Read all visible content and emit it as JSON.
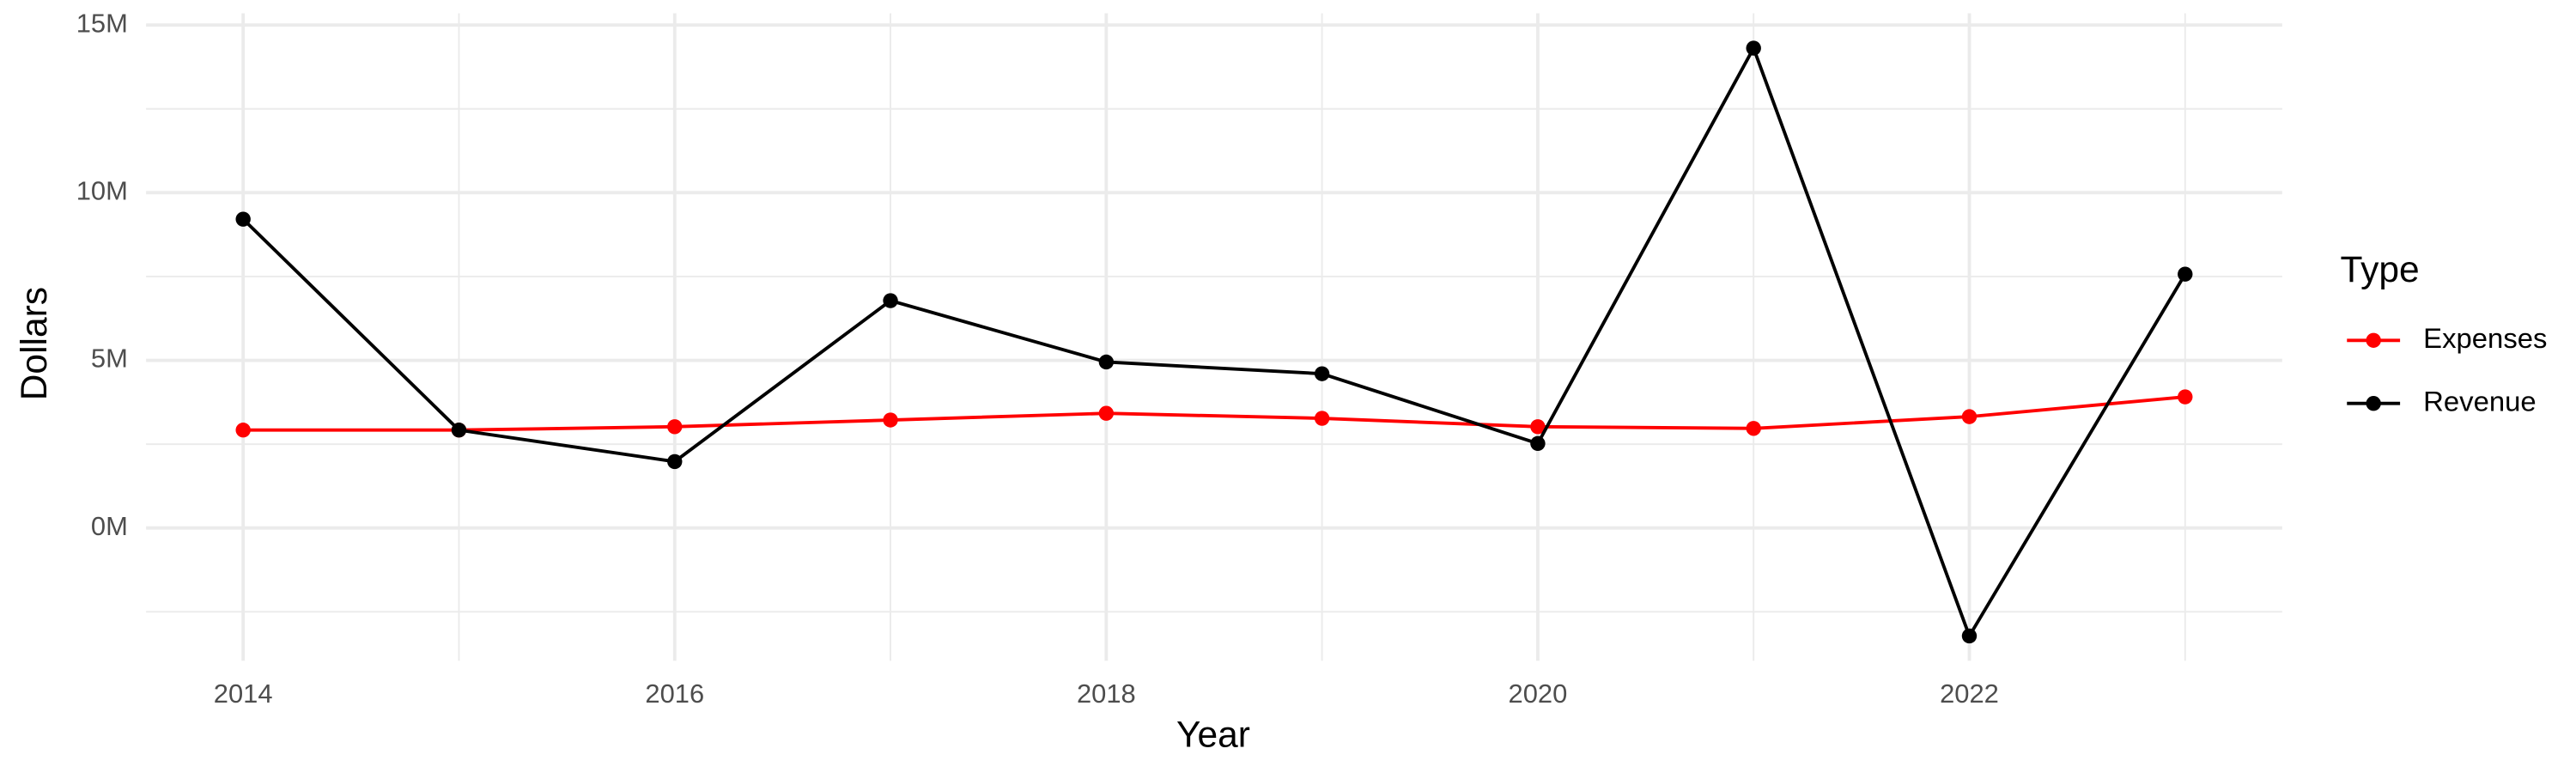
{
  "chart_data": {
    "type": "line",
    "x_label": "Year",
    "y_label": "Dollars",
    "legend_title": "Type",
    "legend_position": "right",
    "grid": true,
    "x": [
      2014,
      2015,
      2016,
      2017,
      2018,
      2019,
      2020,
      2021,
      2022,
      2023
    ],
    "series": [
      {
        "name": "Expenses",
        "color": "#ff0000",
        "values": [
          2920000,
          2920000,
          3020000,
          3220000,
          3420000,
          3270000,
          3020000,
          2970000,
          3320000,
          3910000
        ]
      },
      {
        "name": "Revenue",
        "color": "#000000",
        "values": [
          9210000,
          2920000,
          1980000,
          6780000,
          4950000,
          4600000,
          2520000,
          14310000,
          -3220000,
          7570000
        ]
      }
    ],
    "xlim": [
      2013.55,
      2023.45
    ],
    "xticks": [
      2014,
      2016,
      2018,
      2020,
      2022
    ],
    "x_minor_ticks": [
      2015,
      2017,
      2019,
      2021,
      2023
    ],
    "ylim": [
      -3960000,
      15350000
    ],
    "yticks": [
      {
        "value": 0,
        "label": "0M"
      },
      {
        "value": 5000000,
        "label": "5M"
      },
      {
        "value": 10000000,
        "label": "10M"
      },
      {
        "value": 15000000,
        "label": "15M"
      }
    ],
    "y_minor_ticks": [
      -2500000,
      2500000,
      7500000,
      12500000
    ]
  }
}
